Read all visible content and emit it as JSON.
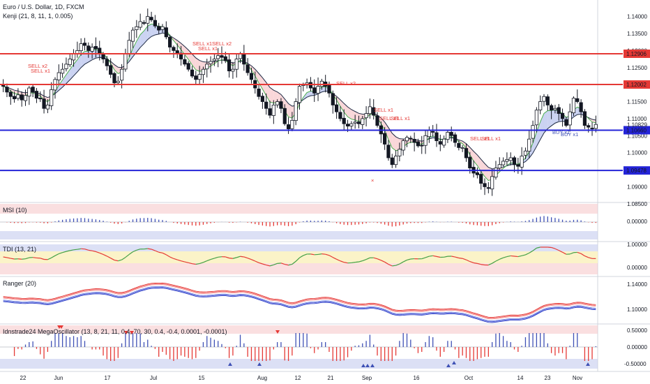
{
  "header": {
    "symbol": "Euro / U.S. Dollar, 1D, FXCM",
    "indicator": "Kenji (21, 8, 11, 1, 0.005)"
  },
  "panels": {
    "msi": "MSI (10)",
    "tdi": "TDI (13, 21)",
    "ranger": "Ranger (20)",
    "mega": "Idnstrade24 MegaOscillator (13, 8, 21, 11, 0.4, 70, 30, 0.4, -0.4, 0.0001, -0.0001)"
  },
  "colors": {
    "up": "#ffffff",
    "down": "#131722",
    "red_level": "#e53935",
    "blue_level": "#2424d8",
    "ema_fast": "#4caf50",
    "ema_slow": "#1e2a44",
    "pos_bar": "#3f51b5",
    "neg_bar": "#e53935"
  },
  "chart_data": [
    {
      "type": "candlestick",
      "title": "Euro / U.S. Dollar, 1D, FXCM",
      "ylim": [
        1.0862,
        1.1432
      ],
      "yticks": [
        "1.14000",
        "1.13500",
        "1.13000",
        "1.12500",
        "1.12000",
        "1.11500",
        "1.11000",
        "1.10500",
        "1.10000",
        "1.09500",
        "1.09000",
        "1.08500"
      ],
      "xticks": [
        "22",
        "Jun",
        "17",
        "Jul",
        "15",
        "Aug",
        "12",
        "21",
        "Sep",
        "16",
        "Oct",
        "14",
        "23",
        "Nov"
      ],
      "levels": [
        {
          "value": 1.12906,
          "label": "1.12906",
          "color": "red"
        },
        {
          "value": 1.12002,
          "label": "1.12002",
          "color": "red"
        },
        {
          "value": 1.1066,
          "label": "1.10660",
          "color": "blue"
        },
        {
          "value": 1.09478,
          "label": "1.09478",
          "color": "blue"
        }
      ],
      "last_price": "1.10829",
      "close": [
        1.1195,
        1.1178,
        1.1165,
        1.1158,
        1.117,
        1.1155,
        1.1168,
        1.119,
        1.1178,
        1.116,
        1.116,
        1.113,
        1.114,
        1.1185,
        1.1215,
        1.1235,
        1.1245,
        1.126,
        1.1275,
        1.129,
        1.13,
        1.132,
        1.1315,
        1.13,
        1.131,
        1.1305,
        1.129,
        1.1275,
        1.1255,
        1.123,
        1.1205,
        1.121,
        1.1245,
        1.129,
        1.133,
        1.136,
        1.137,
        1.1385,
        1.138,
        1.14,
        1.139,
        1.1372,
        1.136,
        1.137,
        1.134,
        1.131,
        1.13,
        1.129,
        1.1275,
        1.126,
        1.1245,
        1.1225,
        1.1215,
        1.123,
        1.1245,
        1.126,
        1.1268,
        1.1275,
        1.1285,
        1.128,
        1.127,
        1.124,
        1.1245,
        1.1275,
        1.129,
        1.126,
        1.1235,
        1.1215,
        1.119,
        1.1165,
        1.115,
        1.113,
        1.111,
        1.114,
        1.115,
        1.113,
        1.1085,
        1.107,
        1.1095,
        1.115,
        1.1195,
        1.12,
        1.1205,
        1.119,
        1.1175,
        1.1195,
        1.121,
        1.1195,
        1.1175,
        1.114,
        1.112,
        1.11,
        1.1085,
        1.1078,
        1.1085,
        1.109,
        1.1085,
        1.11,
        1.1115,
        1.1135,
        1.111,
        1.108,
        1.1055,
        1.1025,
        1.0985,
        1.0965,
        1.099,
        1.101,
        1.1035,
        1.1045,
        1.104,
        1.103,
        1.102,
        1.102,
        1.105,
        1.1065,
        1.106,
        1.1035,
        1.1025,
        1.104,
        1.106,
        1.105,
        1.103,
        1.1015,
        1.1015,
        1.0985,
        1.0955,
        1.094,
        1.0935,
        1.091,
        1.09,
        1.0895,
        1.093,
        1.0955,
        1.0965,
        1.0975,
        1.098,
        1.0985,
        1.0965,
        1.096,
        1.099,
        1.1005,
        1.104,
        1.108,
        1.1125,
        1.115,
        1.1165,
        1.114,
        1.1125,
        1.113,
        1.1115,
        1.11,
        1.108,
        1.112,
        1.116,
        1.115,
        1.112,
        1.108,
        1.1075,
        1.107,
        1.1083
      ]
    }
  ]
}
